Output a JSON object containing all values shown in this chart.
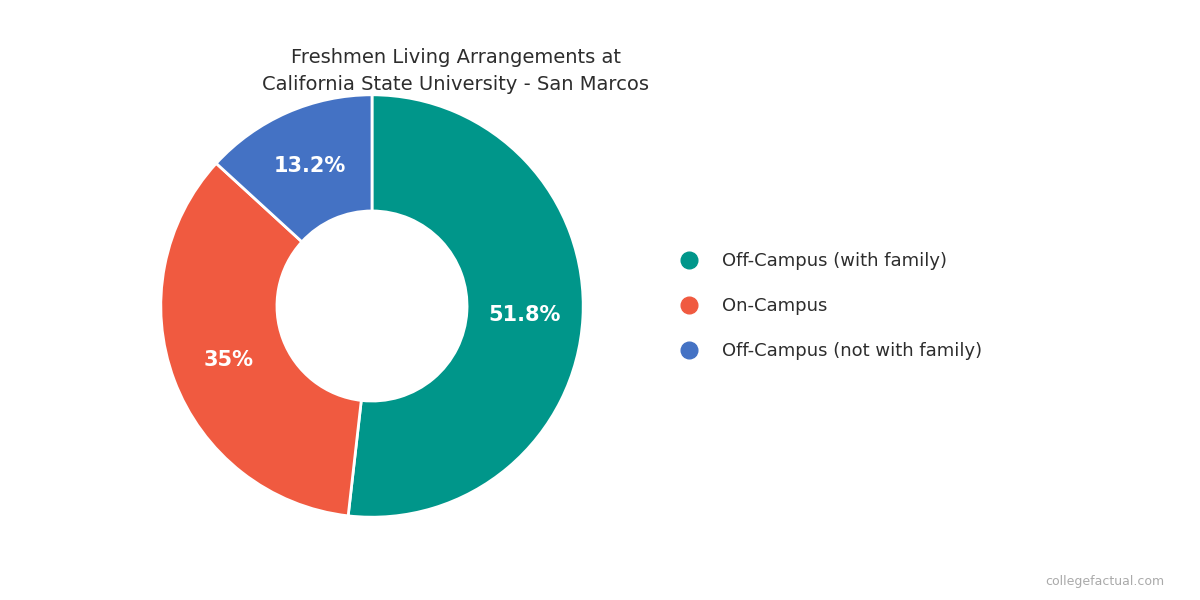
{
  "title": "Freshmen Living Arrangements at\nCalifornia State University - San Marcos",
  "labels": [
    "Off-Campus (with family)",
    "On-Campus",
    "Off-Campus (not with family)"
  ],
  "values": [
    51.8,
    35.0,
    13.2
  ],
  "colors": [
    "#00968A",
    "#F05A40",
    "#4472C4"
  ],
  "label_texts": [
    "51.8%",
    "35%",
    "13.2%"
  ],
  "background_color": "#FFFFFF",
  "title_fontsize": 14,
  "legend_fontsize": 13,
  "label_fontsize": 15,
  "watermark": "collegefactual.com"
}
